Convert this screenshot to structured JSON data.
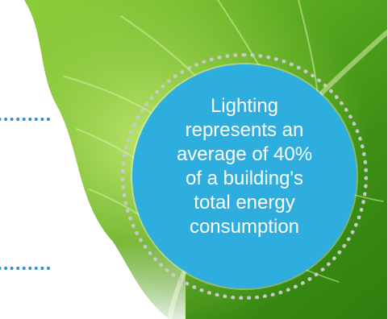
{
  "callout": {
    "lines": [
      "Lighting",
      "represents an",
      "average of 40%",
      "of a building's",
      "total energy",
      "consumption"
    ]
  },
  "colors": {
    "badge_fill": "#2eaedf",
    "badge_ring": "#c9c9c9",
    "dotted_leader": "#2f8fca",
    "leaf_dark": "#2f7f0f",
    "leaf_light": "#a8d84a"
  },
  "illustration": {
    "subject": "green-leaf"
  }
}
